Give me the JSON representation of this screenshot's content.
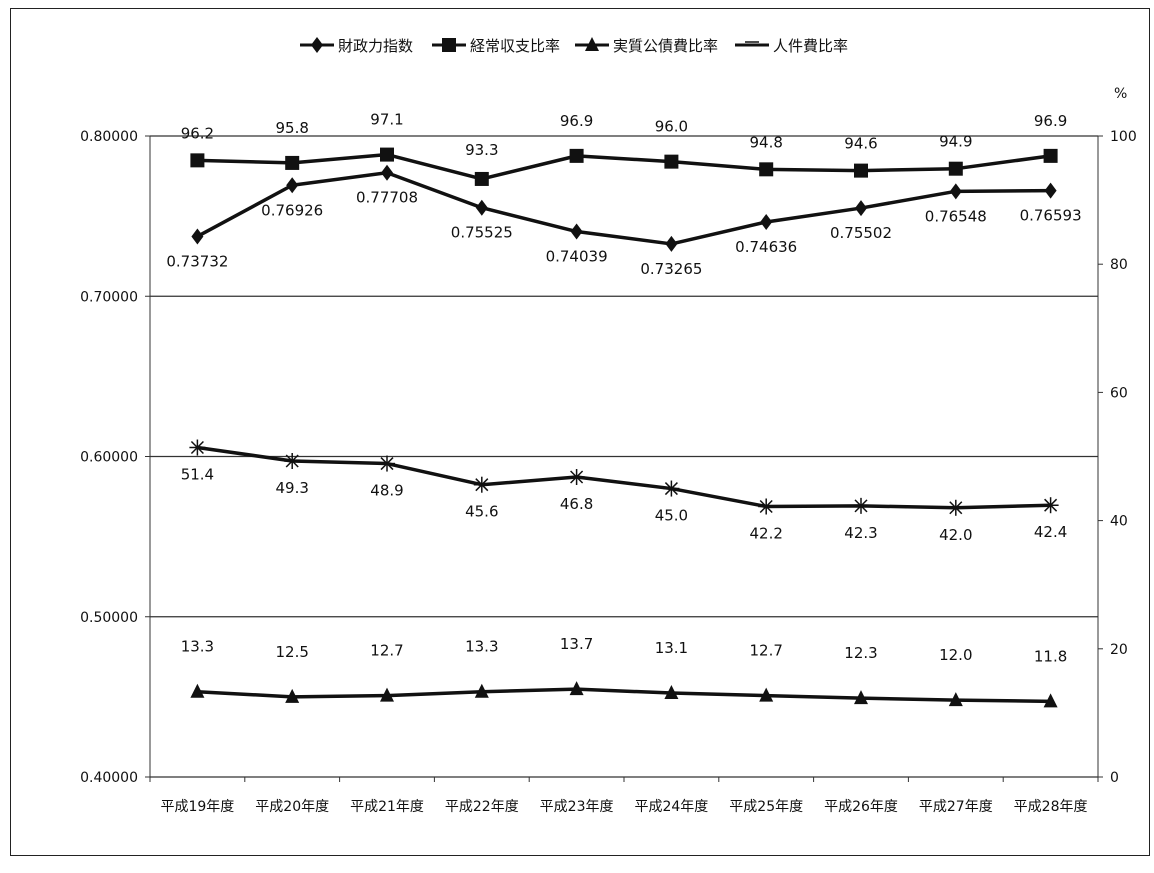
{
  "chart_data": {
    "type": "line",
    "categories": [
      "平成19年度",
      "平成20年度",
      "平成21年度",
      "平成22年度",
      "平成23年度",
      "平成24年度",
      "平成25年度",
      "平成26年度",
      "平成27年度",
      "平成28年度"
    ],
    "y_left": {
      "ylim": [
        0.4,
        0.8
      ],
      "ticks": [
        "0.40000",
        "0.50000",
        "0.60000",
        "0.70000",
        "0.80000"
      ]
    },
    "y_right": {
      "unit": "%",
      "ylim": [
        0,
        100
      ],
      "ticks": [
        "0",
        "20",
        "40",
        "60",
        "80",
        "100"
      ]
    },
    "grid": "horizontal",
    "legend_position": "top",
    "series": [
      {
        "name": "財政力指数",
        "axis": "left",
        "marker": "diamond",
        "values": [
          0.73732,
          0.76926,
          0.77708,
          0.75525,
          0.74039,
          0.73265,
          0.74636,
          0.75502,
          0.76548,
          0.76593
        ],
        "labels": [
          "0.73732",
          "0.76926",
          "0.77708",
          "0.75525",
          "0.74039",
          "0.73265",
          "0.74636",
          "0.75502",
          "0.76548",
          "0.76593"
        ]
      },
      {
        "name": "経常収支比率",
        "axis": "right",
        "marker": "square",
        "values": [
          96.2,
          95.8,
          97.1,
          93.3,
          96.9,
          96.0,
          94.8,
          94.6,
          94.9,
          96.9
        ],
        "labels": [
          "96.2",
          "95.8",
          "97.1",
          "93.3",
          "96.9",
          "96.0",
          "94.8",
          "94.6",
          "94.9",
          "96.9"
        ]
      },
      {
        "name": "実質公債費比率",
        "axis": "right",
        "marker": "triangle",
        "values": [
          13.3,
          12.5,
          12.7,
          13.3,
          13.7,
          13.1,
          12.7,
          12.3,
          12.0,
          11.8
        ],
        "labels": [
          "13.3",
          "12.5",
          "12.7",
          "13.3",
          "13.7",
          "13.1",
          "12.7",
          "12.3",
          "12.0",
          "11.8"
        ]
      },
      {
        "name": "人件費比率",
        "axis": "right",
        "marker": "asterisk",
        "values": [
          51.4,
          49.3,
          48.9,
          45.6,
          46.8,
          45.0,
          42.2,
          42.3,
          42.0,
          42.4
        ],
        "labels": [
          "51.4",
          "49.3",
          "48.9",
          "45.6",
          "46.8",
          "45.0",
          "42.2",
          "42.3",
          "42.0",
          "42.4"
        ]
      }
    ]
  }
}
